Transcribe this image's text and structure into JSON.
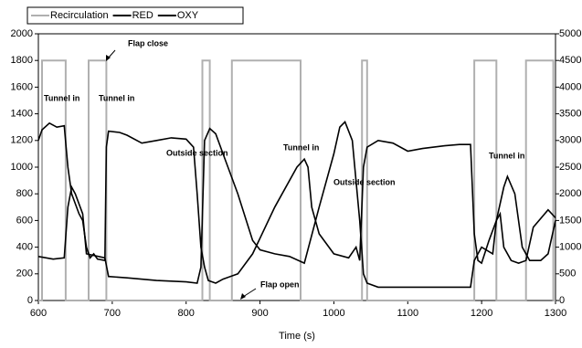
{
  "chart_data": {
    "type": "line",
    "xlabel": "Time (s)",
    "xlim": [
      600,
      1300
    ],
    "xticks": [
      600,
      700,
      800,
      900,
      1000,
      1100,
      1200,
      1300
    ],
    "ylim": [
      0,
      2000
    ],
    "yticks": [
      0,
      200,
      400,
      600,
      800,
      1000,
      1200,
      1400,
      1600,
      1800,
      2000
    ],
    "y2lim": [
      0,
      5000
    ],
    "y2ticks": [
      0,
      500,
      1000,
      1500,
      2000,
      2500,
      3000,
      3500,
      4000,
      4500,
      5000
    ],
    "annotations": [
      "Flap close",
      "Tunnel in",
      "Tunnel in",
      "Tunnel in",
      "Tunnel in",
      "Outside section",
      "Outside section",
      "Flap open"
    ],
    "series": [
      {
        "name": "Recirculation",
        "color": "#b0b0b0",
        "x": [
          600,
          605,
          605,
          637,
          637,
          668,
          668,
          692,
          692,
          822,
          822,
          832,
          832,
          862,
          862,
          955,
          955,
          1038,
          1038,
          1045,
          1045,
          1190,
          1190,
          1220,
          1220,
          1260,
          1260,
          1297,
          1297,
          1300
        ],
        "values": [
          0,
          0,
          1800,
          1800,
          0,
          0,
          1800,
          1800,
          0,
          0,
          1800,
          1800,
          0,
          0,
          1800,
          1800,
          0,
          0,
          1800,
          1800,
          0,
          0,
          1800,
          1800,
          0,
          0,
          1800,
          1800,
          0,
          0
        ]
      },
      {
        "name": "RED",
        "color": "#000000",
        "x": [
          600,
          605,
          615,
          625,
          635,
          640,
          645,
          655,
          660,
          665,
          670,
          675,
          680,
          690,
          692,
          695,
          710,
          720,
          740,
          760,
          780,
          800,
          810,
          815,
          820,
          825,
          830,
          840,
          850,
          870,
          890,
          920,
          950,
          960,
          965,
          970,
          980,
          1000,
          1020,
          1030,
          1035,
          1040,
          1045,
          1060,
          1080,
          1100,
          1120,
          1150,
          1170,
          1185,
          1190,
          1195,
          1200,
          1210,
          1220,
          1225,
          1230,
          1240,
          1250,
          1260,
          1270,
          1290,
          1300
        ],
        "values": [
          1200,
          1280,
          1330,
          1300,
          1310,
          1000,
          800,
          650,
          600,
          400,
          320,
          350,
          310,
          300,
          1150,
          1270,
          1260,
          1240,
          1180,
          1200,
          1220,
          1210,
          1150,
          800,
          400,
          250,
          150,
          130,
          160,
          200,
          350,
          700,
          1000,
          1060,
          1000,
          700,
          500,
          350,
          320,
          400,
          300,
          1000,
          1150,
          1200,
          1180,
          1120,
          1140,
          1160,
          1170,
          1170,
          500,
          300,
          280,
          450,
          600,
          650,
          400,
          300,
          280,
          300,
          550,
          680,
          620
        ]
      },
      {
        "name": "OXY",
        "color": "#000000",
        "axis": "y2",
        "x": [
          600,
          620,
          635,
          640,
          645,
          650,
          660,
          665,
          690,
          695,
          720,
          760,
          800,
          815,
          820,
          825,
          832,
          840,
          850,
          870,
          890,
          900,
          920,
          940,
          960,
          980,
          1000,
          1008,
          1015,
          1025,
          1035,
          1040,
          1045,
          1060,
          1100,
          1150,
          1185,
          1190,
          1200,
          1215,
          1220,
          1230,
          1235,
          1245,
          1255,
          1265,
          1280,
          1290,
          1300
        ],
        "values": [
          825,
          775,
          800,
          1750,
          2125,
          2000,
          1625,
          875,
          800,
          450,
          425,
          375,
          350,
          325,
          625,
          3000,
          3225,
          3125,
          2750,
          2000,
          1125,
          950,
          875,
          825,
          700,
          1750,
          2750,
          3250,
          3350,
          3000,
          1500,
          500,
          325,
          250,
          250,
          250,
          250,
          750,
          1000,
          875,
          1500,
          2125,
          2325,
          2000,
          1000,
          750,
          750,
          875,
          1500
        ]
      }
    ]
  }
}
